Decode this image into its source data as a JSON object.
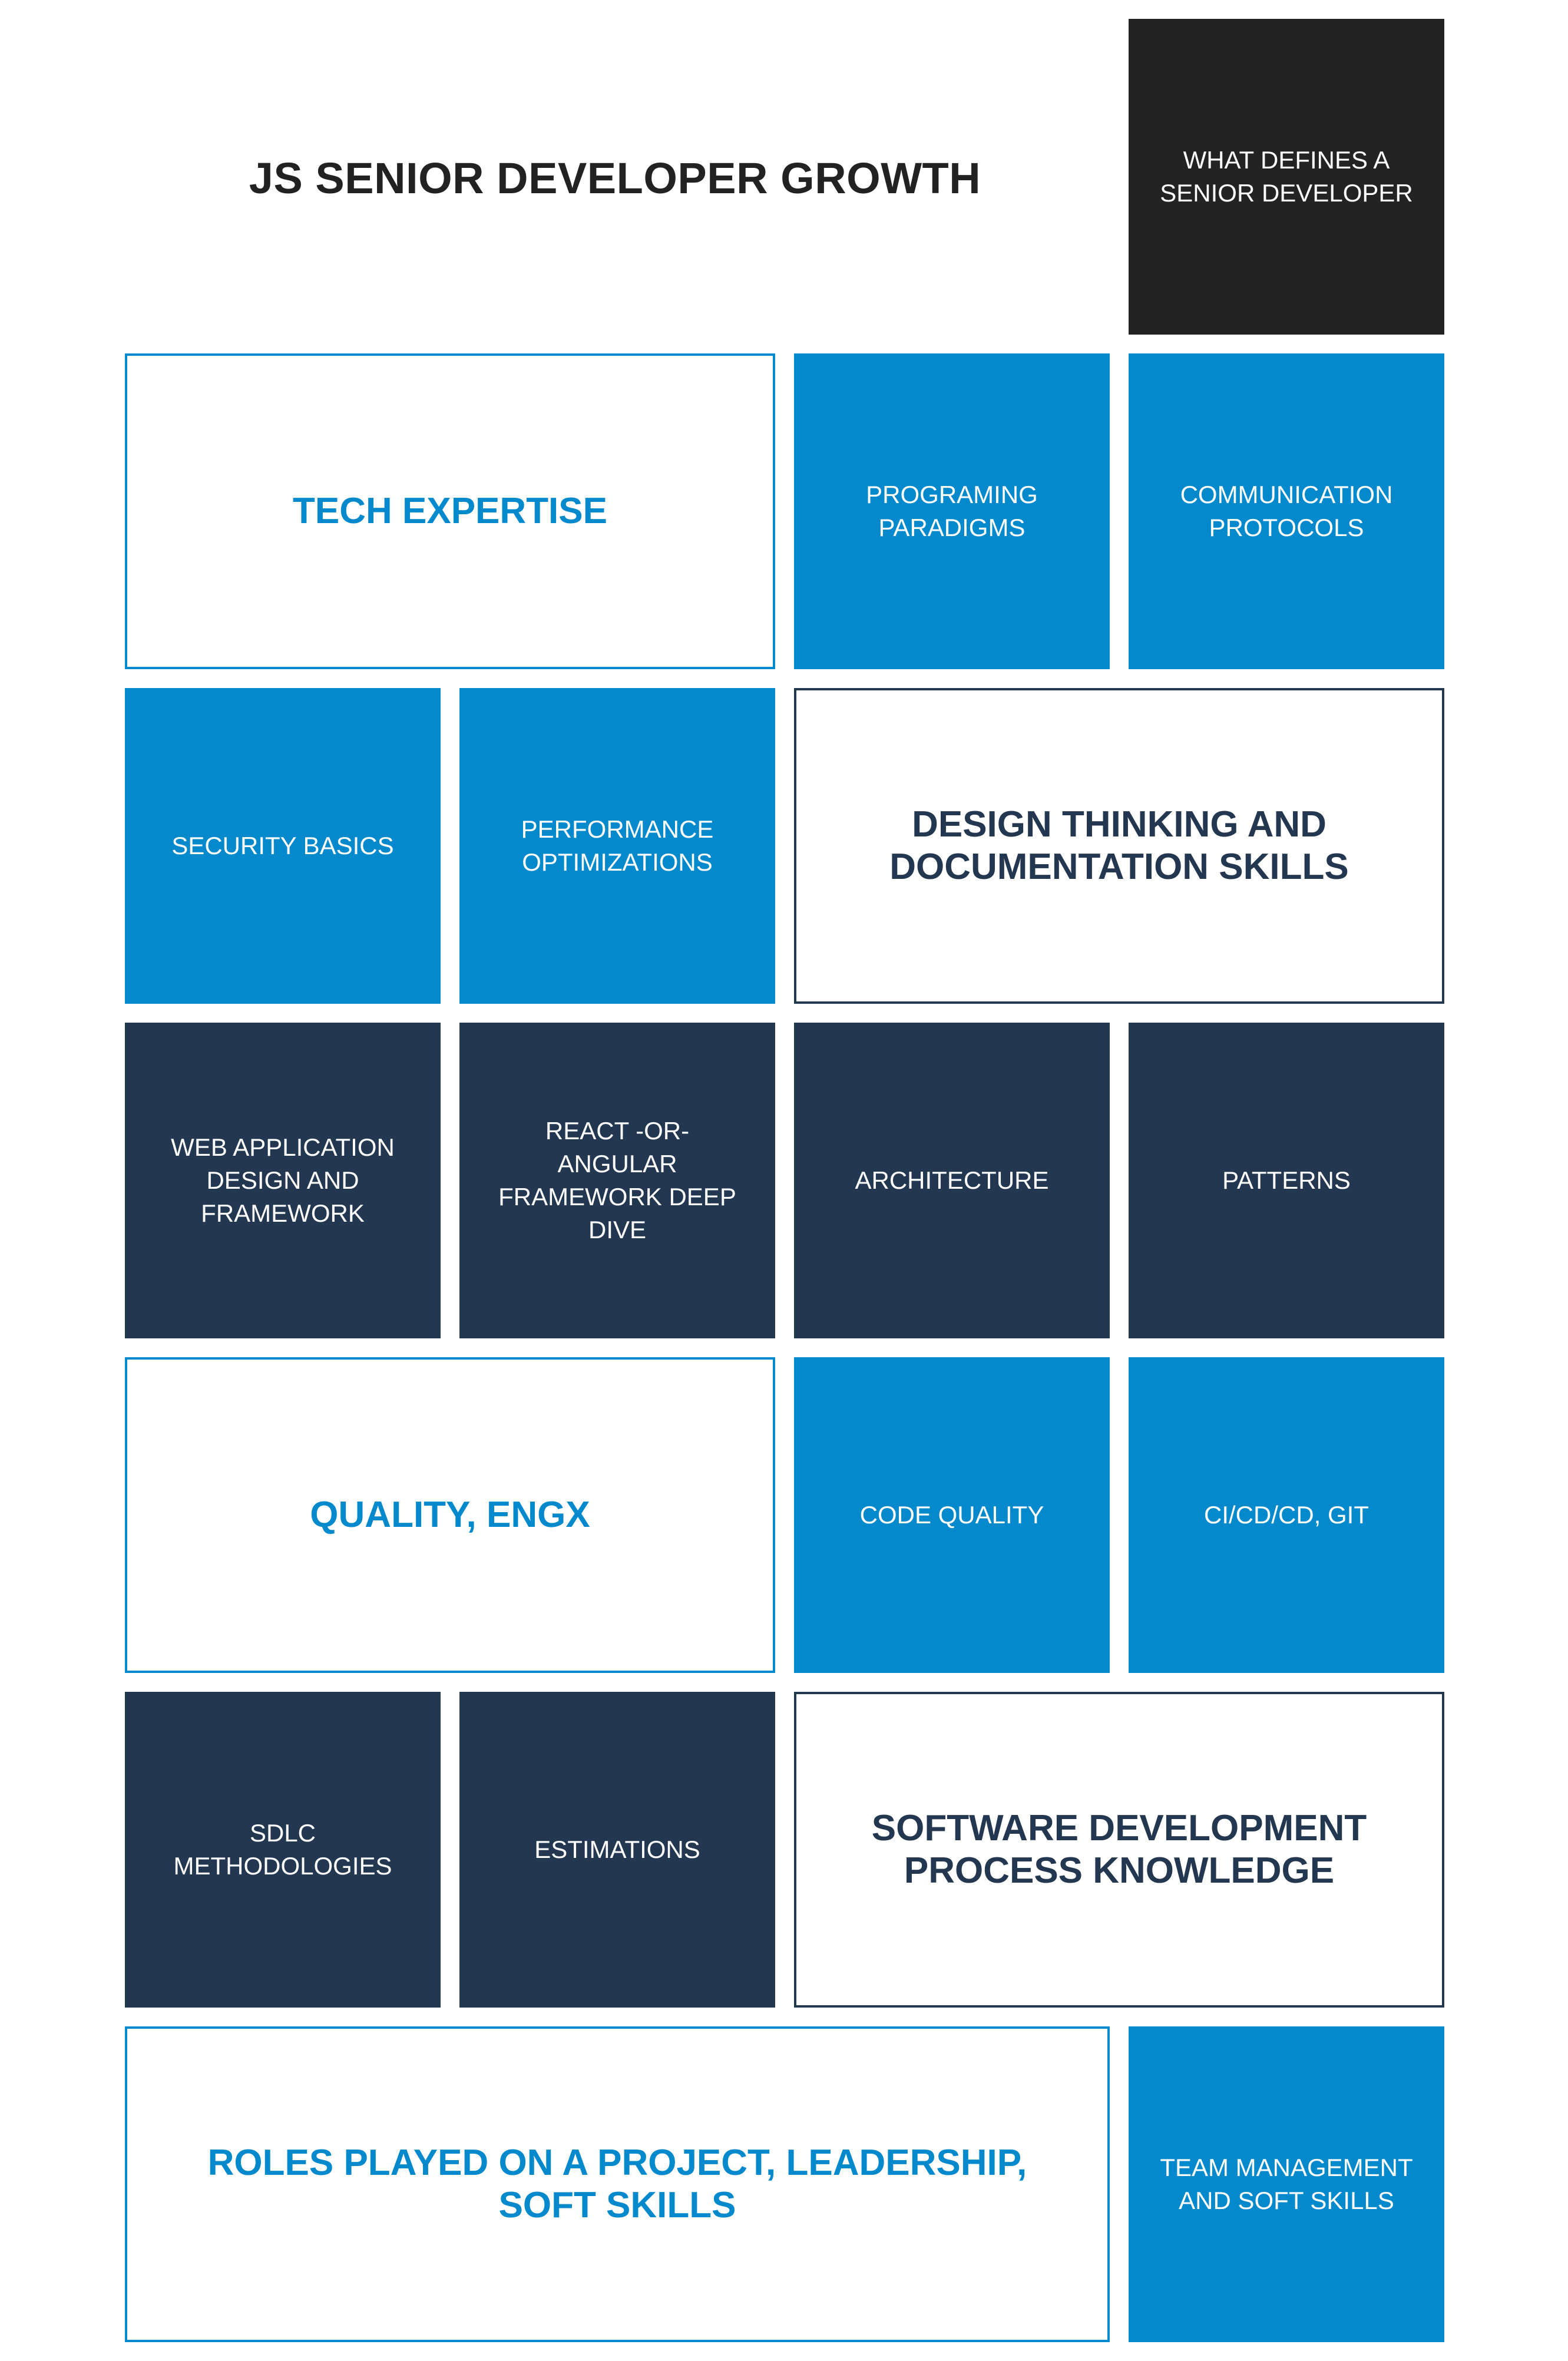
{
  "title": "JS SENIOR DEVELOPER GROWTH",
  "colors": {
    "blue": "#0389cc",
    "navy": "#243750",
    "black": "#232323",
    "white": "#ffffff"
  },
  "rows": {
    "row0": {
      "senior_definition": "WHAT DEFINES A SENIOR DEVELOPER"
    },
    "row1": {
      "section_title": "TECH EXPERTISE",
      "programming_paradigms": "PROGRAMING PARADIGMS",
      "communication_protocols": "COMMUNICATION PROTOCOLS"
    },
    "row2": {
      "security_basics": "SECURITY BASICS",
      "performance_optimizations": "PERFORMANCE OPTIMIZATIONS",
      "section_title": "DESIGN THINKING AND DOCUMENTATION SKILLS"
    },
    "row3": {
      "web_application": "WEB APPLICATION DESIGN AND FRAMEWORK",
      "react_angular": "REACT -OR- ANGULAR FRAMEWORK DEEP DIVE",
      "architecture": "ARCHITECTURE",
      "patterns": "PATTERNS"
    },
    "row4": {
      "section_title": "QUALITY, ENGX",
      "code_quality": "CODE QUALITY",
      "ci_cd": "CI/CD/CD, GIT"
    },
    "row5": {
      "sdlc": "SDLC METHODOLOGIES",
      "estimations": "ESTIMATIONS",
      "section_title": "SOFTWARE DEVELOPMENT PROCESS KNOWLEDGE"
    },
    "row6": {
      "section_title": "ROLES PLAYED ON A PROJECT, LEADERSHIP, SOFT SKILLS",
      "team_management": "TEAM MANAGEMENT AND SOFT SKILLS"
    }
  }
}
